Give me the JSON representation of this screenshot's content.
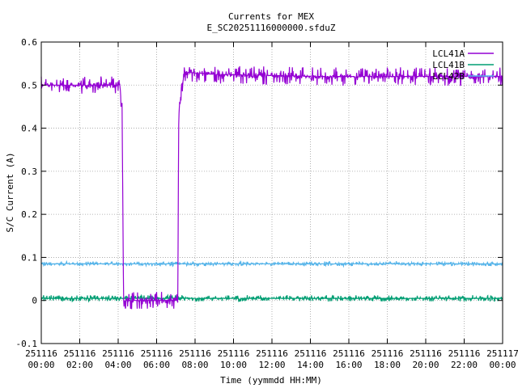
{
  "chart_data": {
    "type": "line",
    "title": "Currents for MEX",
    "subtitle": "E_SC20251116000000.sfduZ",
    "xlabel": "Time (yymmdd HH:MM)",
    "ylabel": "S/C Current (A)",
    "xlim": [
      0,
      24
    ],
    "ylim": [
      -0.1,
      0.6
    ],
    "x_ticks": [
      {
        "v": 0,
        "date": "251116",
        "time": "00:00"
      },
      {
        "v": 2,
        "date": "251116",
        "time": "02:00"
      },
      {
        "v": 4,
        "date": "251116",
        "time": "04:00"
      },
      {
        "v": 6,
        "date": "251116",
        "time": "06:00"
      },
      {
        "v": 8,
        "date": "251116",
        "time": "08:00"
      },
      {
        "v": 10,
        "date": "251116",
        "time": "10:00"
      },
      {
        "v": 12,
        "date": "251116",
        "time": "12:00"
      },
      {
        "v": 14,
        "date": "251116",
        "time": "14:00"
      },
      {
        "v": 16,
        "date": "251116",
        "time": "16:00"
      },
      {
        "v": 18,
        "date": "251116",
        "time": "18:00"
      },
      {
        "v": 20,
        "date": "251116",
        "time": "20:00"
      },
      {
        "v": 22,
        "date": "251116",
        "time": "22:00"
      },
      {
        "v": 24,
        "date": "251117",
        "time": "00:00"
      }
    ],
    "y_ticks": [
      {
        "v": 0.6,
        "label": "0.6"
      },
      {
        "v": 0.5,
        "label": "0.5"
      },
      {
        "v": 0.4,
        "label": "0.4"
      },
      {
        "v": 0.3,
        "label": "0.3"
      },
      {
        "v": 0.2,
        "label": "0.2"
      },
      {
        "v": 0.1,
        "label": "0.1"
      },
      {
        "v": 0,
        "label": "0"
      },
      {
        "v": -0.1,
        "label": "-0.1"
      }
    ],
    "grid": true,
    "legend_position": "top-right",
    "series": [
      {
        "name": "LCL41A",
        "color": "#9400d3",
        "noise": 0.012,
        "points": [
          [
            0.0,
            0.5
          ],
          [
            4.1,
            0.5
          ],
          [
            4.15,
            0.46
          ],
          [
            4.2,
            0.45
          ],
          [
            4.28,
            0.0
          ],
          [
            7.1,
            0.0
          ],
          [
            7.15,
            0.42
          ],
          [
            7.3,
            0.5
          ],
          [
            7.5,
            0.53
          ],
          [
            9.0,
            0.525
          ],
          [
            14.5,
            0.52
          ],
          [
            16.5,
            0.52
          ],
          [
            24.0,
            0.52
          ]
        ]
      },
      {
        "name": "LCL41B",
        "color": "#009e73",
        "noise": 0.004,
        "points": [
          [
            0.0,
            0.005
          ],
          [
            24.0,
            0.005
          ]
        ]
      },
      {
        "name": "LCL42B",
        "color": "#56b4e9",
        "noise": 0.003,
        "points": [
          [
            0.0,
            0.085
          ],
          [
            24.0,
            0.085
          ]
        ]
      }
    ]
  }
}
